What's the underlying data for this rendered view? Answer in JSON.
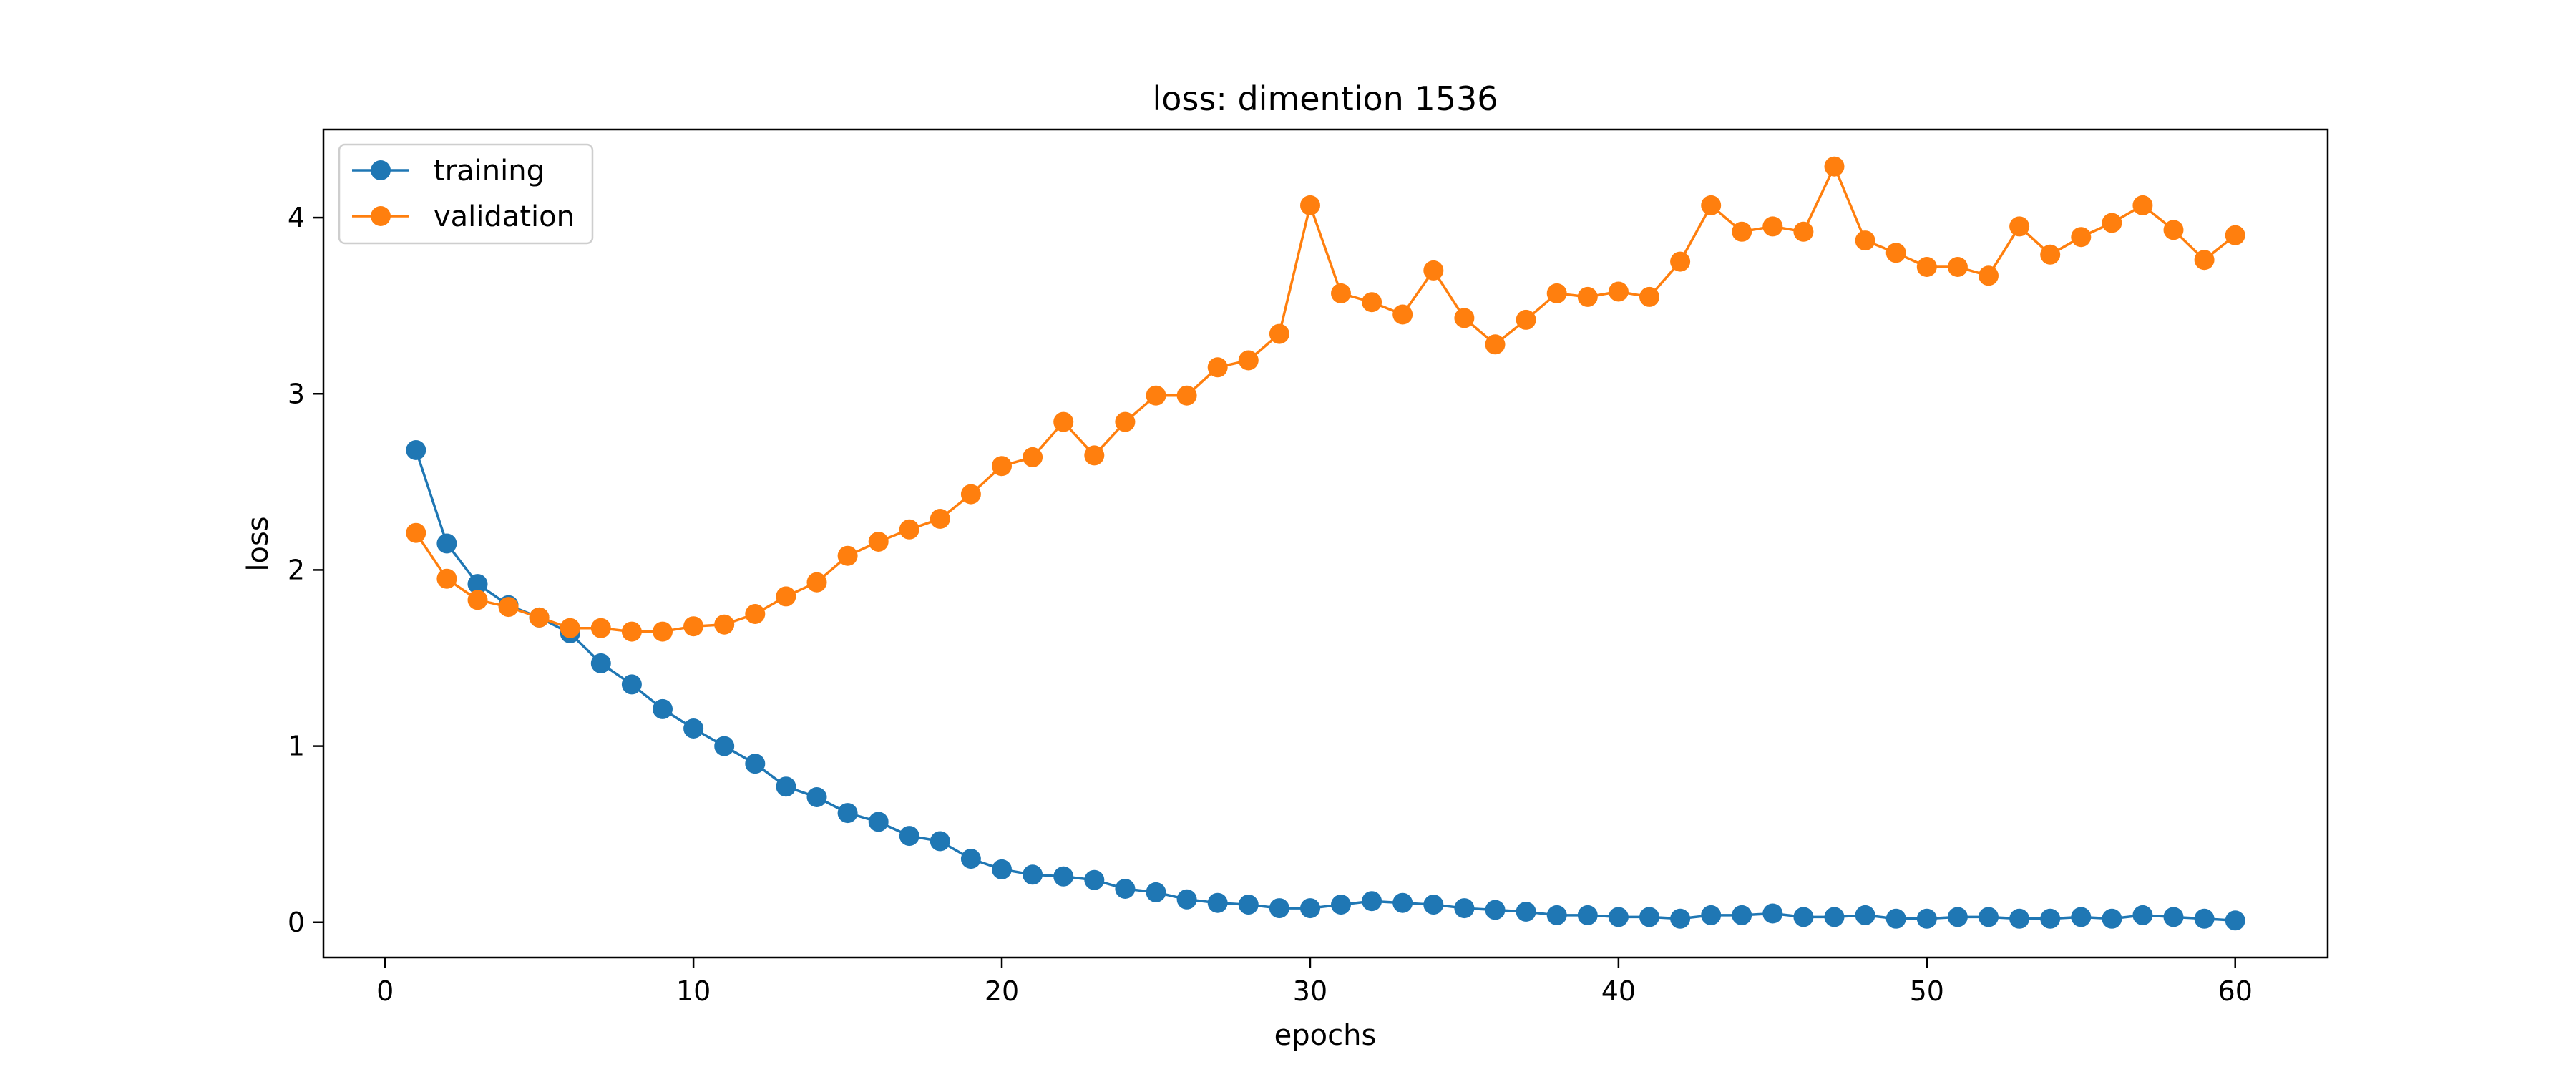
{
  "chart_data": {
    "type": "line",
    "title": "loss: dimention 1536",
    "xlabel": "epochs",
    "ylabel": "loss",
    "xlim": [
      -2,
      63
    ],
    "ylim": [
      -0.2,
      4.5
    ],
    "xticks": [
      0,
      10,
      20,
      30,
      40,
      50,
      60
    ],
    "yticks": [
      0,
      1,
      2,
      3,
      4
    ],
    "grid": false,
    "legend_position": "top-left",
    "x": [
      1,
      2,
      3,
      4,
      5,
      6,
      7,
      8,
      9,
      10,
      11,
      12,
      13,
      14,
      15,
      16,
      17,
      18,
      19,
      20,
      21,
      22,
      23,
      24,
      25,
      26,
      27,
      28,
      29,
      30,
      31,
      32,
      33,
      34,
      35,
      36,
      37,
      38,
      39,
      40,
      41,
      42,
      43,
      44,
      45,
      46,
      47,
      48,
      49,
      50,
      51,
      52,
      53,
      54,
      55,
      56,
      57,
      58,
      59,
      60
    ],
    "series": [
      {
        "name": "training",
        "color": "#1f77b4",
        "values": [
          2.68,
          2.15,
          1.92,
          1.8,
          1.73,
          1.64,
          1.47,
          1.35,
          1.21,
          1.1,
          1.0,
          0.9,
          0.77,
          0.71,
          0.62,
          0.57,
          0.49,
          0.46,
          0.36,
          0.3,
          0.27,
          0.26,
          0.24,
          0.19,
          0.17,
          0.13,
          0.11,
          0.1,
          0.08,
          0.08,
          0.1,
          0.12,
          0.11,
          0.1,
          0.08,
          0.07,
          0.06,
          0.04,
          0.04,
          0.03,
          0.03,
          0.02,
          0.04,
          0.04,
          0.05,
          0.03,
          0.03,
          0.04,
          0.02,
          0.02,
          0.03,
          0.03,
          0.02,
          0.02,
          0.03,
          0.02,
          0.04,
          0.03,
          0.02,
          0.01
        ]
      },
      {
        "name": "validation",
        "color": "#ff7f0e",
        "values": [
          2.21,
          1.95,
          1.83,
          1.79,
          1.73,
          1.67,
          1.67,
          1.65,
          1.65,
          1.68,
          1.69,
          1.75,
          1.85,
          1.93,
          2.08,
          2.16,
          2.23,
          2.29,
          2.43,
          2.59,
          2.64,
          2.84,
          2.65,
          2.84,
          2.99,
          2.99,
          3.15,
          3.19,
          3.34,
          4.07,
          3.57,
          3.52,
          3.45,
          3.7,
          3.43,
          3.28,
          3.42,
          3.57,
          3.55,
          3.58,
          3.55,
          3.75,
          4.07,
          3.92,
          3.95,
          3.92,
          4.29,
          3.87,
          3.8,
          3.72,
          3.72,
          3.67,
          3.95,
          3.79,
          3.89,
          3.97,
          4.07,
          3.93,
          3.76,
          3.9
        ]
      }
    ]
  }
}
